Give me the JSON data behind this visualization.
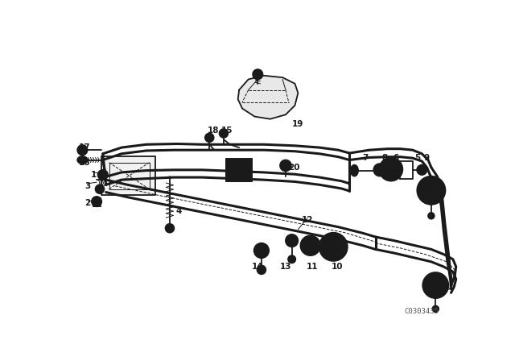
{
  "bg_color": "#ffffff",
  "line_color": "#1a1a1a",
  "watermark": "C0303435",
  "lw_thick": 2.2,
  "lw_main": 1.3,
  "lw_thin": 0.7
}
